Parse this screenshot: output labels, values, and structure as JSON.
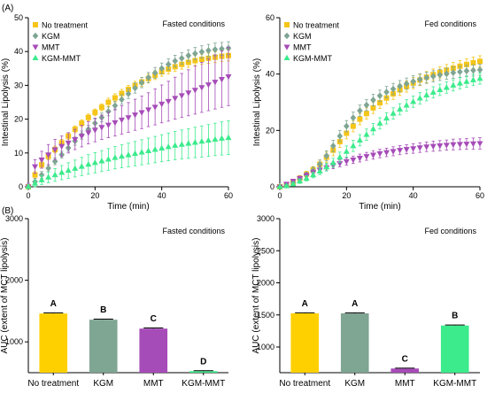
{
  "panel_labels": [
    "(A)",
    "(B)"
  ],
  "colors": {
    "no_treatment": "#F5C518",
    "kgm": "#7FA593",
    "mmt": "#A64CB8",
    "kgm_mmt": "#3CEB8C"
  },
  "chart_data": [
    {
      "type": "line",
      "condition_label": "Fasted conditions",
      "xlabel": "Time (min)",
      "ylabel": "Intestinal Lipolysis (%)",
      "xlim": [
        0,
        60
      ],
      "ylim": [
        0,
        50
      ],
      "xticks": [
        0,
        20,
        40,
        60
      ],
      "yticks": [
        0,
        10,
        20,
        30,
        40,
        50
      ],
      "legend_position": "top-left",
      "x": [
        0,
        2,
        4,
        6,
        8,
        10,
        12,
        14,
        16,
        18,
        20,
        22,
        24,
        26,
        28,
        30,
        32,
        34,
        36,
        38,
        40,
        42,
        44,
        46,
        48,
        50,
        52,
        54,
        56,
        58,
        60
      ],
      "series": [
        {
          "name": "No treatment",
          "marker": "square",
          "color": "#F5C518",
          "values": [
            0,
            3.5,
            6.5,
            9,
            11,
            13,
            15,
            17,
            18.8,
            20.5,
            22,
            23.5,
            25,
            26.3,
            27.6,
            28.8,
            30,
            31,
            32,
            33,
            34,
            34.8,
            35.5,
            36.2,
            36.8,
            37.3,
            37.7,
            38,
            38.3,
            38.6,
            38.8
          ],
          "err": [
            0.5,
            1,
            1,
            1,
            1,
            1,
            1,
            1,
            1,
            1,
            1,
            1,
            1.2,
            1.2,
            1.2,
            1.2,
            1.2,
            1.3,
            1.3,
            1.3,
            1.3,
            1.4,
            1.4,
            1.4,
            1.5,
            1.5,
            1.5,
            1.5,
            1.6,
            1.6,
            1.6
          ]
        },
        {
          "name": "KGM",
          "marker": "diamond",
          "color": "#7FA593",
          "values": [
            0,
            1.5,
            3.5,
            5.5,
            7.5,
            9.5,
            11.5,
            13.5,
            15.3,
            17,
            18.8,
            20.5,
            22.3,
            24,
            25.8,
            27.5,
            29.2,
            30.8,
            32.3,
            33.7,
            35,
            36.2,
            37.2,
            38,
            38.8,
            39.4,
            39.9,
            40.3,
            40.6,
            40.8,
            41
          ],
          "err": [
            0.5,
            1,
            1,
            1,
            1,
            1,
            1,
            1.2,
            1.2,
            1.2,
            1.2,
            1.3,
            1.3,
            1.3,
            1.4,
            1.4,
            1.5,
            1.5,
            1.5,
            1.6,
            1.6,
            1.6,
            1.7,
            1.7,
            1.7,
            1.8,
            1.8,
            1.8,
            1.9,
            1.9,
            1.9
          ]
        },
        {
          "name": "MMT",
          "marker": "triangle-down",
          "color": "#A64CB8",
          "values": [
            0,
            6,
            8,
            9.5,
            11,
            12,
            13,
            14,
            15,
            16,
            16.8,
            17.6,
            18.3,
            19,
            19.8,
            20.5,
            21.3,
            22,
            22.8,
            23.6,
            24.5,
            25.3,
            26.2,
            27,
            27.8,
            28.6,
            29.4,
            30.2,
            31,
            31.8,
            32.6
          ],
          "err": [
            1,
            2,
            2.5,
            3,
            3,
            3,
            3,
            3,
            3.2,
            3.3,
            3.5,
            3.6,
            3.8,
            4,
            4.2,
            4.4,
            4.6,
            4.8,
            5,
            5.3,
            5.6,
            5.9,
            6.2,
            6.5,
            6.8,
            7.1,
            7.4,
            7.7,
            8,
            8.3,
            8.6
          ]
        },
        {
          "name": "KGM-MMT",
          "marker": "triangle-up",
          "color": "#3CEB8C",
          "values": [
            0,
            1,
            2,
            2.8,
            3.5,
            4.2,
            4.8,
            5.4,
            6,
            6.6,
            7.1,
            7.6,
            8.1,
            8.6,
            9,
            9.4,
            9.8,
            10.2,
            10.6,
            11,
            11.4,
            11.8,
            12.2,
            12.5,
            12.8,
            13.1,
            13.4,
            13.7,
            14,
            14.3,
            14.5
          ],
          "err": [
            0.5,
            1,
            1.3,
            1.6,
            1.9,
            2.1,
            2.3,
            2.5,
            2.7,
            2.9,
            3,
            3.1,
            3.2,
            3.3,
            3.4,
            3.5,
            3.6,
            3.7,
            3.8,
            3.9,
            4,
            4.1,
            4.2,
            4.3,
            4.4,
            4.5,
            4.6,
            4.7,
            4.8,
            4.9,
            5
          ]
        }
      ]
    },
    {
      "type": "line",
      "condition_label": "Fed conditions",
      "xlabel": "Time (min)",
      "ylabel": "Intestinal Lipolysis (%)",
      "xlim": [
        0,
        60
      ],
      "ylim": [
        0,
        60
      ],
      "xticks": [
        0,
        20,
        40,
        60
      ],
      "yticks": [
        0,
        20,
        40,
        60
      ],
      "legend_position": "top-left",
      "x": [
        0,
        2,
        4,
        6,
        8,
        10,
        12,
        14,
        16,
        18,
        20,
        22,
        24,
        26,
        28,
        30,
        32,
        34,
        36,
        38,
        40,
        42,
        44,
        46,
        48,
        50,
        52,
        54,
        56,
        58,
        60
      ],
      "series": [
        {
          "name": "No treatment",
          "marker": "square",
          "color": "#F5C518",
          "values": [
            0,
            0.5,
            1.5,
            3,
            4.5,
            6,
            8,
            10.5,
            13,
            16,
            19,
            21.5,
            24,
            26,
            28,
            29.8,
            31.5,
            33,
            34.4,
            35.6,
            36.8,
            37.9,
            38.9,
            39.8,
            40.6,
            41.4,
            42.1,
            42.8,
            43.4,
            44,
            44.5
          ],
          "err": [
            0.2,
            0.5,
            0.8,
            1,
            1,
            1.2,
            1.5,
            1.8,
            2,
            2,
            2,
            2,
            2,
            2,
            2,
            2,
            2,
            2,
            2,
            2,
            2,
            2,
            2,
            2,
            2,
            2,
            2,
            2,
            2,
            2,
            2
          ]
        },
        {
          "name": "KGM",
          "marker": "diamond",
          "color": "#7FA593",
          "values": [
            0,
            0.5,
            1.5,
            2.8,
            4.2,
            5.8,
            8,
            11,
            14.5,
            18,
            21.5,
            24.5,
            27,
            29,
            30.8,
            32.3,
            33.6,
            34.7,
            35.7,
            36.6,
            37.4,
            38.1,
            38.7,
            39.2,
            39.7,
            40.1,
            40.5,
            40.8,
            41.1,
            41.3,
            41.5
          ],
          "err": [
            0.2,
            0.5,
            0.8,
            1,
            1,
            1.2,
            1.5,
            1.8,
            2,
            2,
            2,
            2,
            2,
            2,
            2,
            2,
            2,
            2,
            2,
            2,
            2,
            2,
            2,
            2,
            2,
            2,
            2,
            2,
            2,
            2,
            2
          ]
        },
        {
          "name": "MMT",
          "marker": "triangle-down",
          "color": "#A64CB8",
          "values": [
            0,
            1,
            2,
            3,
            4,
            5,
            6,
            6.8,
            7.6,
            8.3,
            9,
            9.6,
            10.2,
            10.8,
            11.3,
            11.8,
            12.2,
            12.6,
            13,
            13.3,
            13.6,
            13.9,
            14.2,
            14.4,
            14.6,
            14.8,
            15,
            15.1,
            15.2,
            15.3,
            15.4
          ],
          "err": [
            0.2,
            0.5,
            0.7,
            0.8,
            0.9,
            1,
            1,
            1.1,
            1.2,
            1.2,
            1.3,
            1.3,
            1.4,
            1.4,
            1.5,
            1.5,
            1.5,
            1.6,
            1.6,
            1.6,
            1.7,
            1.7,
            1.7,
            1.8,
            1.8,
            1.8,
            1.9,
            1.9,
            1.9,
            2,
            2
          ]
        },
        {
          "name": "KGM-MMT",
          "marker": "triangle-up",
          "color": "#3CEB8C",
          "values": [
            0,
            0.3,
            1,
            2,
            3,
            4.2,
            5.5,
            7,
            8.5,
            10.5,
            12.5,
            14.5,
            16.5,
            18.5,
            20.5,
            22.5,
            24.3,
            26,
            27.5,
            28.9,
            30.2,
            31.4,
            32.5,
            33.5,
            34.4,
            35.2,
            36,
            36.7,
            37.3,
            37.9,
            38.4
          ],
          "err": [
            0.2,
            0.4,
            0.6,
            0.8,
            0.9,
            1,
            1.2,
            1.4,
            1.6,
            1.8,
            2,
            2,
            2,
            2,
            2,
            2,
            2,
            2,
            2,
            2,
            2,
            2,
            2,
            2,
            2,
            2,
            2,
            2,
            2,
            2,
            2
          ]
        }
      ]
    },
    {
      "type": "bar",
      "condition_label": "Fasted conditions",
      "xlabel": "",
      "ylabel": "AUC (extent of MCT lipolysis)",
      "ylim": [
        500,
        3000
      ],
      "yticks": [
        1000,
        2000,
        3000
      ],
      "categories": [
        "No treatment",
        "KGM",
        "MMT",
        "KGM-MMT"
      ],
      "values": [
        1460,
        1360,
        1215,
        525
      ],
      "err": [
        10,
        10,
        10,
        8
      ],
      "letters": [
        "A",
        "B",
        "C",
        "D"
      ],
      "colors": [
        "#FFD000",
        "#7FA593",
        "#A64CB8",
        "#3CEB8C"
      ]
    },
    {
      "type": "bar",
      "condition_label": "Fed conditions",
      "xlabel": "",
      "ylabel": "AUC (extent of MCT lipolysis)",
      "ylim": [
        600,
        3000
      ],
      "yticks": [
        1000,
        1500,
        2000,
        2500,
        3000
      ],
      "categories": [
        "No treatment",
        "KGM",
        "MMT",
        "KGM-MMT"
      ],
      "values": [
        1525,
        1525,
        665,
        1335
      ],
      "err": [
        8,
        8,
        6,
        8
      ],
      "letters": [
        "A",
        "A",
        "C",
        "B"
      ],
      "colors": [
        "#FFD000",
        "#7FA593",
        "#A64CB8",
        "#3CEB8C"
      ]
    }
  ]
}
